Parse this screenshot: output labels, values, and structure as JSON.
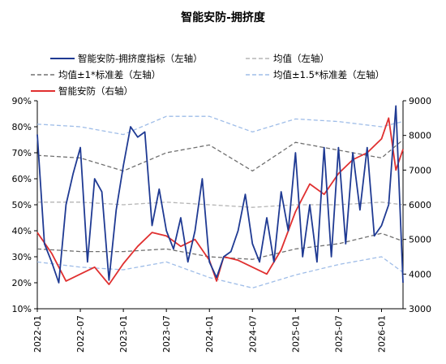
{
  "chart_data": {
    "type": "line",
    "title": "智能安防-拥挤度",
    "legend_position": "top",
    "grid": false,
    "x_ticks": [
      "2022-01",
      "2022-07",
      "2023-01",
      "2023-07",
      "2024-01",
      "2024-07",
      "2025-01",
      "2025-07",
      "2026-01"
    ],
    "x_range": [
      "2022-01",
      "2026-04"
    ],
    "y_left": {
      "range": [
        10,
        90
      ],
      "ticks": [
        "10%",
        "20%",
        "30%",
        "40%",
        "50%",
        "60%",
        "70%",
        "80%",
        "90%"
      ]
    },
    "y_right": {
      "range": [
        3000,
        9000
      ],
      "ticks": [
        "3000",
        "4000",
        "5000",
        "6000",
        "7000",
        "8000",
        "9000"
      ]
    },
    "series": [
      {
        "name": "智能安防-拥挤度指标（左轴）",
        "axis": "left",
        "color": "#1f3a93",
        "style": "solid",
        "x": [
          "2022-01",
          "2022-02",
          "2022-03",
          "2022-04",
          "2022-05",
          "2022-06",
          "2022-07",
          "2022-08",
          "2022-09",
          "2022-10",
          "2022-11",
          "2022-12",
          "2023-01",
          "2023-02",
          "2023-03",
          "2023-04",
          "2023-05",
          "2023-06",
          "2023-07",
          "2023-08",
          "2023-09",
          "2023-10",
          "2023-11",
          "2023-12",
          "2024-01",
          "2024-02",
          "2024-03",
          "2024-04",
          "2024-05",
          "2024-06",
          "2024-07",
          "2024-08",
          "2024-09",
          "2024-10",
          "2024-11",
          "2024-12",
          "2025-01",
          "2025-02",
          "2025-03",
          "2025-04",
          "2025-05",
          "2025-06",
          "2025-07",
          "2025-08",
          "2025-09",
          "2025-10",
          "2025-11",
          "2025-12",
          "2026-01",
          "2026-02",
          "2026-03",
          "2026-04"
        ],
        "values": [
          77,
          35,
          28,
          20,
          50,
          62,
          72,
          28,
          60,
          55,
          21,
          48,
          65,
          80,
          76,
          78,
          42,
          56,
          40,
          33,
          45,
          28,
          40,
          60,
          28,
          22,
          30,
          32,
          40,
          54,
          35,
          28,
          45,
          28,
          55,
          40,
          70,
          30,
          50,
          28,
          72,
          30,
          72,
          35,
          70,
          48,
          72,
          38,
          42,
          50,
          88,
          20
        ]
      },
      {
        "name": "均值（左轴）",
        "axis": "left",
        "color": "#b5b5b5",
        "style": "dashed",
        "x": [
          "2022-01",
          "2022-07",
          "2023-01",
          "2023-07",
          "2024-01",
          "2024-07",
          "2025-01",
          "2025-07",
          "2026-01",
          "2026-04"
        ],
        "values": [
          51,
          51,
          50,
          51,
          50,
          49,
          50,
          50,
          51,
          50
        ]
      },
      {
        "name": "均值±1*标准差（左轴）",
        "axis": "left",
        "color": "#707070",
        "style": "dashed",
        "x": [
          "2022-01",
          "2022-07",
          "2023-01",
          "2023-07",
          "2024-01",
          "2024-07",
          "2025-01",
          "2025-07",
          "2026-01",
          "2026-04"
        ],
        "values": [
          69,
          68,
          63,
          70,
          73,
          63,
          74,
          71,
          68,
          75
        ]
      },
      {
        "name": "均值±1*标准差（左轴）",
        "axis": "left",
        "color": "#707070",
        "style": "dashed",
        "x": [
          "2022-01",
          "2022-07",
          "2023-01",
          "2023-07",
          "2024-01",
          "2024-07",
          "2025-01",
          "2025-07",
          "2026-01",
          "2026-04"
        ],
        "values": [
          33,
          32,
          32,
          33,
          30,
          29,
          33,
          35,
          39,
          36
        ]
      },
      {
        "name": "均值±1.5*标准差（左轴）",
        "axis": "left",
        "color": "#9fbde8",
        "style": "dashed",
        "x": [
          "2022-01",
          "2022-07",
          "2023-01",
          "2023-07",
          "2024-01",
          "2024-07",
          "2025-01",
          "2025-07",
          "2026-01",
          "2026-04"
        ],
        "values": [
          81,
          80,
          77,
          84,
          84,
          78,
          83,
          82,
          80,
          82
        ]
      },
      {
        "name": "均值±1.5*标准差（左轴）",
        "axis": "left",
        "color": "#9fbde8",
        "style": "dashed",
        "x": [
          "2022-01",
          "2022-07",
          "2023-01",
          "2023-07",
          "2024-01",
          "2024-07",
          "2025-01",
          "2025-07",
          "2026-01",
          "2026-04"
        ],
        "values": [
          28,
          26,
          25,
          28,
          22,
          18,
          23,
          27,
          30,
          24
        ]
      },
      {
        "name": "智能安防（右轴）",
        "axis": "right",
        "color": "#e03030",
        "style": "solid",
        "x": [
          "2022-01",
          "2022-03",
          "2022-05",
          "2022-07",
          "2022-09",
          "2022-11",
          "2023-01",
          "2023-03",
          "2023-05",
          "2023-07",
          "2023-09",
          "2023-11",
          "2024-01",
          "2024-02",
          "2024-03",
          "2024-05",
          "2024-07",
          "2024-09",
          "2024-11",
          "2025-01",
          "2025-03",
          "2025-05",
          "2025-07",
          "2025-09",
          "2025-11",
          "2026-01",
          "2026-02",
          "2026-03",
          "2026-04"
        ],
        "values": [
          5200,
          4600,
          3800,
          4000,
          4200,
          3700,
          4300,
          4800,
          5200,
          5100,
          4800,
          5000,
          4400,
          3800,
          4500,
          4400,
          4200,
          4000,
          4700,
          5800,
          6600,
          6300,
          6900,
          7300,
          7500,
          7900,
          8500,
          7000,
          7600
        ]
      }
    ]
  }
}
